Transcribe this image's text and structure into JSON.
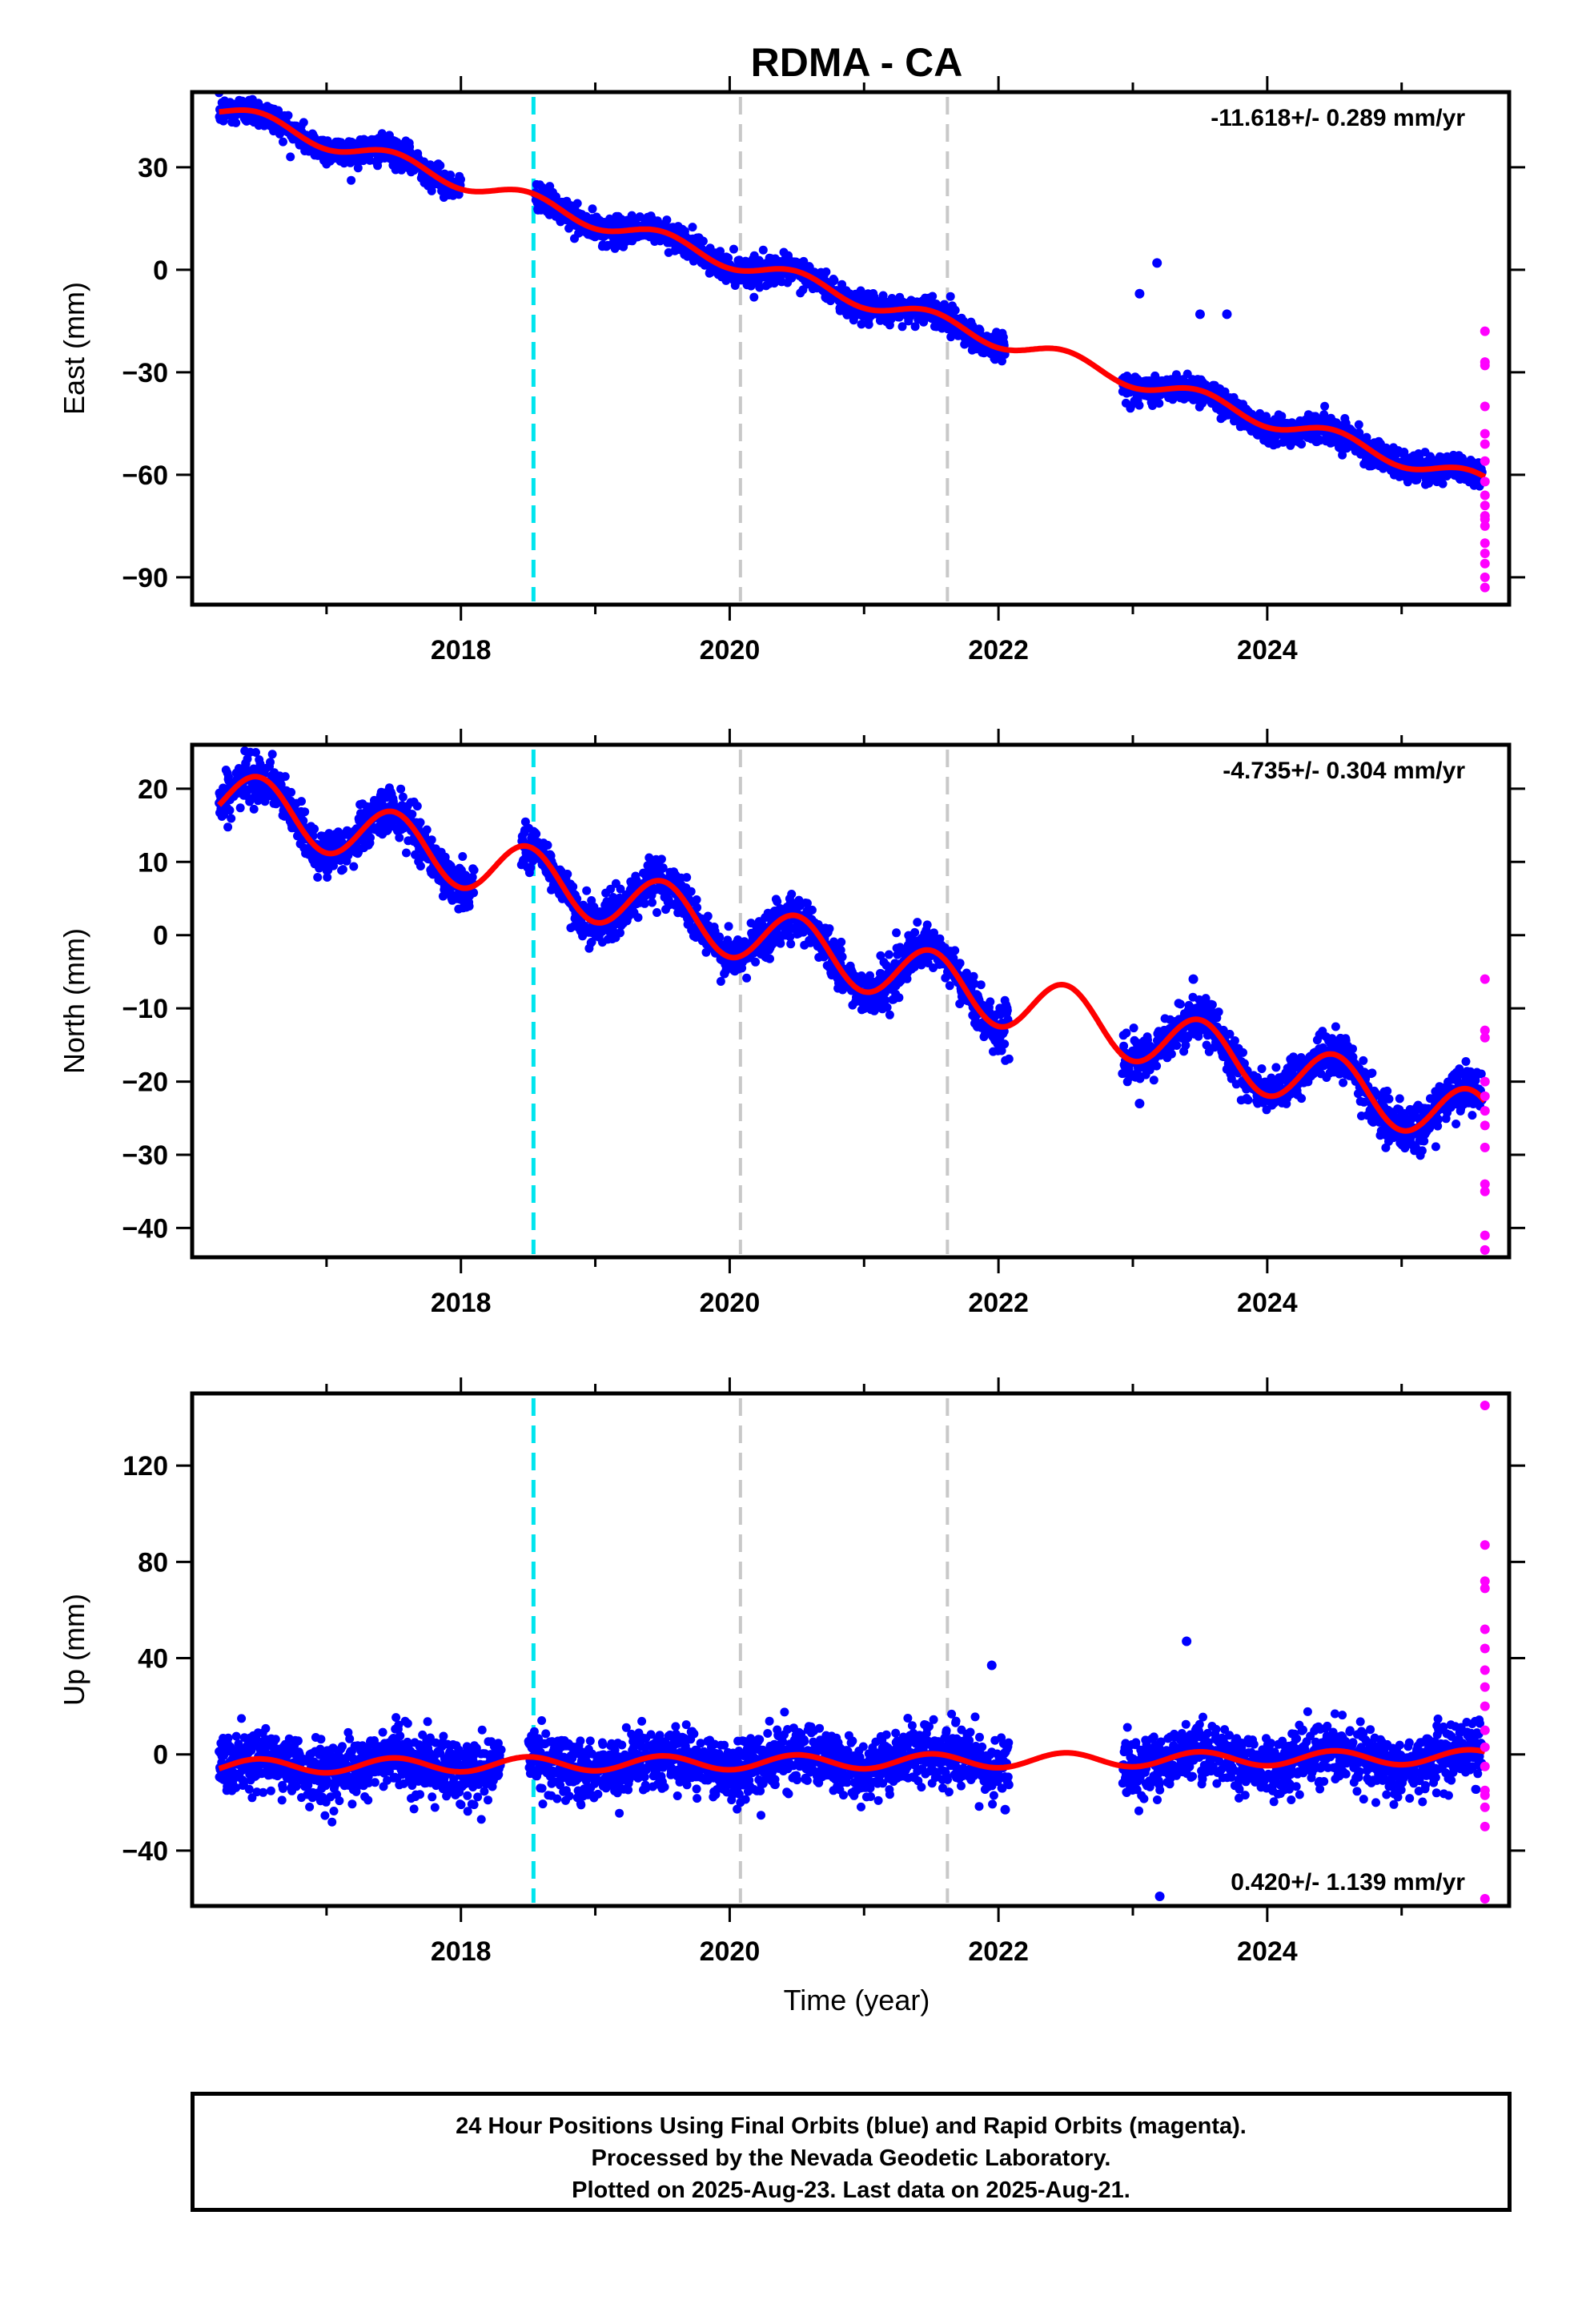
{
  "title": "RDMA - CA",
  "xlabel": "Time (year)",
  "x_ticks": [
    2018,
    2020,
    2022,
    2024
  ],
  "x_range": [
    2016.0,
    2025.8
  ],
  "colors": {
    "final": "#0000ff",
    "rapid": "#ff00ff",
    "model": "#ff0000",
    "equip_change": "#00e5ee",
    "other_event": "#c8c8c8"
  },
  "events": [
    {
      "year": 2018.54,
      "kind": "equip_change"
    },
    {
      "year": 2020.08,
      "kind": "other_event"
    },
    {
      "year": 2021.62,
      "kind": "other_event"
    }
  ],
  "chart_data": [
    {
      "type": "scatter",
      "ylabel": "East (mm)",
      "ylim": [
        -98,
        52
      ],
      "y_ticks": [
        30,
        0,
        -30,
        -60,
        -90
      ],
      "rate_label": "-11.618+/- 0.289 mm/yr",
      "rate_position": "top-right",
      "trend": {
        "t0": 2016.2,
        "v0": 47,
        "slope": -11.618,
        "ann_amp": 2.5,
        "noise": 2.0
      },
      "gaps": [
        [
          2018.0,
          2018.55
        ],
        [
          2022.05,
          2022.92
        ]
      ],
      "rapid_values": [
        -18,
        -27,
        -28,
        -40,
        -48,
        -51,
        -56,
        -62,
        -66,
        -69,
        -72,
        -73,
        -75,
        -80,
        -83,
        -86,
        -90,
        -93
      ],
      "outliers": [
        [
          2023.05,
          -7
        ],
        [
          2023.18,
          2
        ],
        [
          2023.5,
          -13
        ],
        [
          2023.7,
          -13
        ]
      ]
    },
    {
      "type": "scatter",
      "ylabel": "North (mm)",
      "ylim": [
        -44,
        26
      ],
      "y_ticks": [
        20,
        10,
        0,
        -10,
        -20,
        -30,
        -40
      ],
      "rate_label": "-4.735+/- 0.304 mm/yr",
      "rate_position": "top-right",
      "trend": {
        "t0": 2016.2,
        "v0": 19,
        "slope": -4.735,
        "ann_amp": 4.0,
        "noise": 1.5
      },
      "gaps": [
        [
          2018.1,
          2018.45
        ],
        [
          2022.08,
          2022.92
        ]
      ],
      "rapid_values": [
        -6,
        -13,
        -14,
        -20,
        -22,
        -24,
        -26,
        -29,
        -34,
        -35,
        -41,
        -43
      ],
      "outliers": [
        [
          2023.45,
          -6
        ],
        [
          2023.05,
          -23
        ]
      ]
    },
    {
      "type": "scatter",
      "ylabel": "Up (mm)",
      "ylim": [
        -63,
        150
      ],
      "y_ticks": [
        120,
        80,
        40,
        0,
        -40
      ],
      "rate_label": "0.420+/- 1.139 mm/yr",
      "rate_position": "bottom-right",
      "trend": {
        "t0": 2016.2,
        "v0": -5,
        "slope": 0.42,
        "ann_amp": 3.0,
        "noise": 6.0
      },
      "gaps": [
        [
          2018.3,
          2018.5
        ],
        [
          2022.08,
          2022.92
        ]
      ],
      "rapid_values": [
        145,
        87,
        72,
        69,
        52,
        44,
        35,
        28,
        20,
        10,
        3,
        -5,
        -15,
        -17,
        -22,
        -30,
        -60
      ],
      "outliers": [
        [
          2023.2,
          -59
        ],
        [
          2023.4,
          47
        ],
        [
          2021.95,
          37
        ],
        [
          2022.05,
          -23
        ]
      ]
    }
  ],
  "footer": {
    "line1": "24 Hour Positions Using Final Orbits (blue) and Rapid Orbits (magenta).",
    "line2": "Processed by the Nevada Geodetic Laboratory.",
    "line3": "Plotted on 2025-Aug-23. Last data on 2025-Aug-21."
  }
}
